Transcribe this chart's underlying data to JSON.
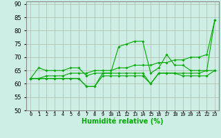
{
  "x": [
    0,
    1,
    2,
    3,
    4,
    5,
    6,
    7,
    8,
    9,
    10,
    11,
    12,
    13,
    14,
    15,
    16,
    17,
    18,
    19,
    20,
    21,
    22,
    23
  ],
  "line1": [
    62,
    66,
    65,
    65,
    65,
    66,
    66,
    63,
    64,
    64,
    64,
    74,
    75,
    76,
    76,
    64,
    66,
    71,
    67,
    67,
    65,
    65,
    65,
    84
  ],
  "line2": [
    62,
    62,
    62,
    62,
    62,
    62,
    62,
    59,
    59,
    64,
    64,
    64,
    64,
    64,
    64,
    60,
    64,
    64,
    64,
    64,
    64,
    64,
    65,
    65
  ],
  "line3": [
    62,
    62,
    62,
    62,
    62,
    62,
    62,
    59,
    59,
    63,
    63,
    63,
    63,
    63,
    63,
    60,
    64,
    64,
    64,
    63,
    63,
    63,
    63,
    65
  ],
  "line4": [
    62,
    62,
    63,
    63,
    63,
    64,
    64,
    64,
    65,
    65,
    65,
    66,
    66,
    67,
    67,
    67,
    68,
    68,
    69,
    69,
    70,
    70,
    71,
    84
  ],
  "xlim": [
    -0.5,
    23.5
  ],
  "ylim": [
    50,
    91
  ],
  "yticks": [
    50,
    55,
    60,
    65,
    70,
    75,
    80,
    85,
    90
  ],
  "xtick_labels": [
    "0",
    "1",
    "2",
    "3",
    "4",
    "5",
    "6",
    "7",
    "8",
    "9",
    "10",
    "11",
    "12",
    "13",
    "14",
    "15",
    "16",
    "17",
    "18",
    "19",
    "20",
    "21",
    "22",
    "23"
  ],
  "xlabel": "Humidité relative (%)",
  "line_color": "#00aa00",
  "marker": "D",
  "marker_size": 2,
  "bg_color": "#cceee4",
  "grid_color": "#aabbaa",
  "spine_color": "#888888",
  "fig_bg": "#cceee4",
  "tick_color": "#000000"
}
